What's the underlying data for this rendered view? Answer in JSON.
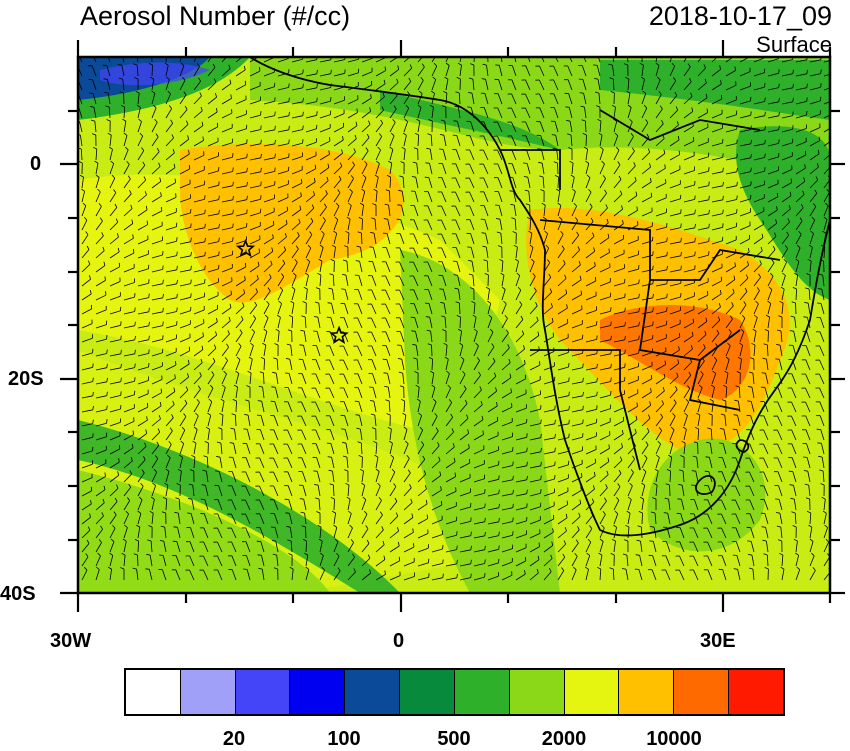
{
  "header": {
    "title": "Aerosol Number (#/cc)",
    "datetime": "2018-10-17_09",
    "level": "Surface"
  },
  "axes": {
    "x_ticks": [
      "30W",
      "0",
      "30E"
    ],
    "y_ticks": [
      "0",
      "20S",
      "40S"
    ],
    "lon_range": [
      -30,
      40
    ],
    "lat_range": [
      -40,
      10
    ]
  },
  "colorbar": {
    "colors": [
      "#ffffff",
      "#a0a0f8",
      "#4444f8",
      "#0000f0",
      "#0a4a98",
      "#078a3c",
      "#2fb02a",
      "#8ad818",
      "#e6f510",
      "#ffc000",
      "#ff6a00",
      "#ff1a00"
    ],
    "tick_labels": [
      "20",
      "100",
      "500",
      "2000",
      "10000"
    ]
  },
  "markers": {
    "label": "station-markers",
    "points": [
      {
        "lon": -14.4,
        "lat": -7.9
      },
      {
        "lon": -5.7,
        "lat": -16.0
      }
    ]
  }
}
